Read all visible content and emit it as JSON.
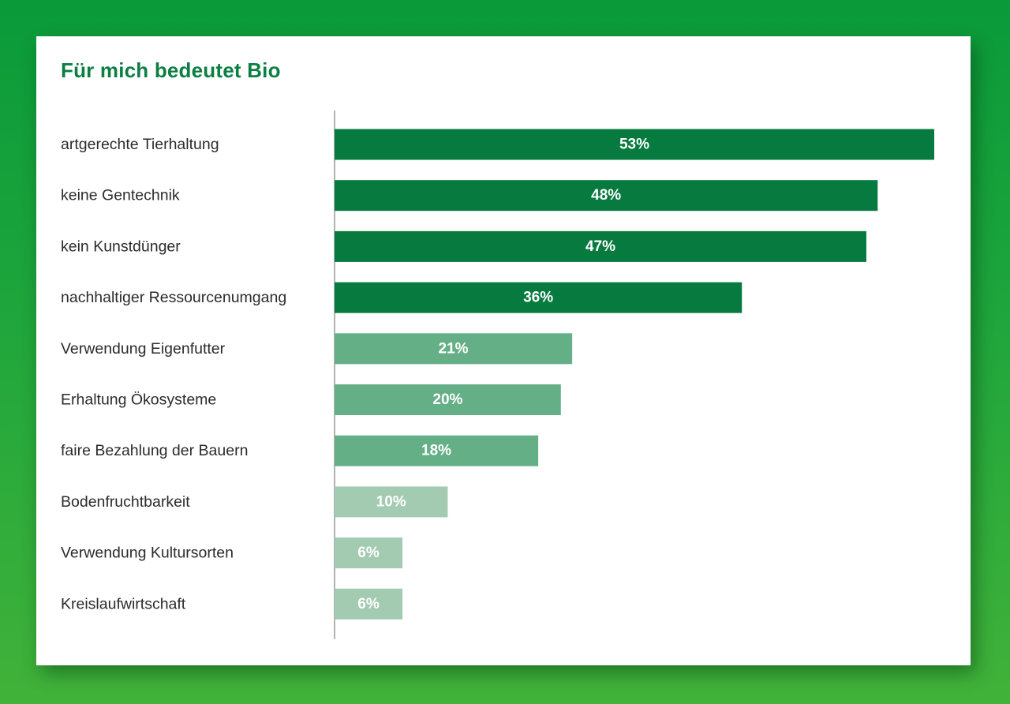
{
  "chart_data": {
    "type": "bar",
    "orientation": "horizontal",
    "title": "Für mich bedeutet Bio",
    "categories": [
      "artgerechte Tierhaltung",
      "keine Gentechnik",
      "kein Kunstdünger",
      "nachhaltiger Ressourcenumgang",
      "Verwendung Eigenfutter",
      "Erhaltung Ökosysteme",
      "faire Bezahlung der Bauern",
      "Bodenfruchtbarkeit",
      "Verwendung Kultursorten",
      "Kreislaufwirtschaft"
    ],
    "values": [
      53,
      48,
      47,
      36,
      21,
      20,
      18,
      10,
      6,
      6
    ],
    "value_labels": [
      "53%",
      "48%",
      "47%",
      "36%",
      "21%",
      "20%",
      "18%",
      "10%",
      "6%",
      "6%"
    ],
    "unit": "%",
    "xlim": [
      0,
      53
    ],
    "grid": false,
    "legend": "none",
    "colors": {
      "dark": "#077a3f",
      "medium": "#65af87",
      "light": "#a2cbb2",
      "title": "#0b7f41",
      "axis": "#666666"
    }
  }
}
